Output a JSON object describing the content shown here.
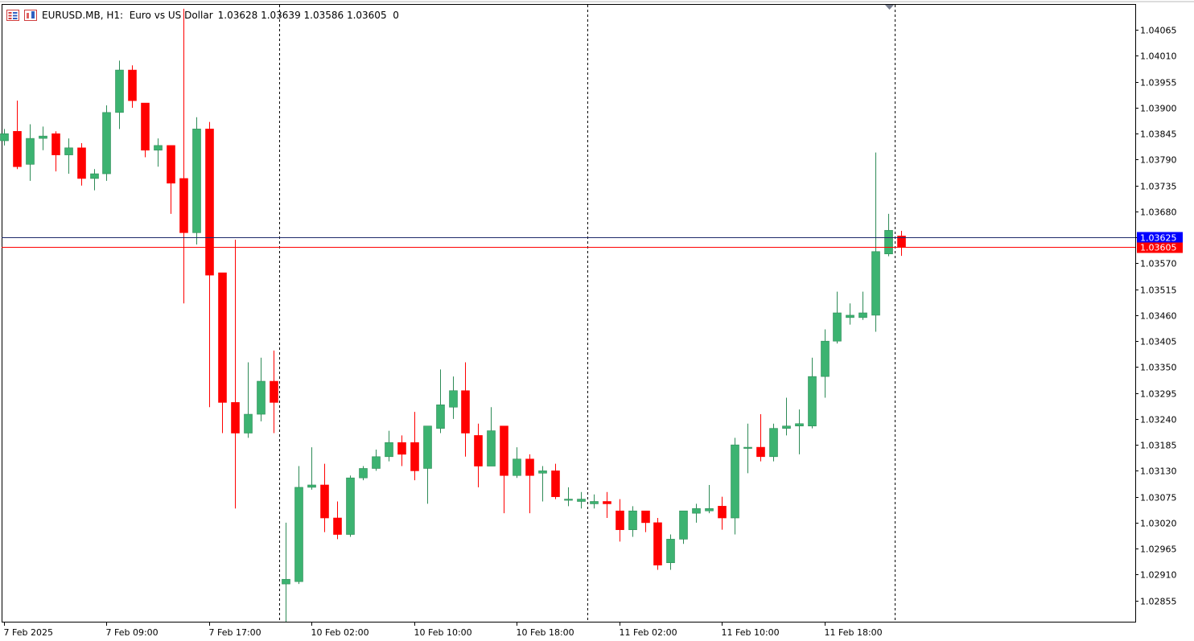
{
  "header": {
    "symbol_line": "EURUSD.MB, H1:  Euro vs US Dollar",
    "ohlc_text": "1.03628 1.03639 1.03586 1.03605  0"
  },
  "colors": {
    "bull": "#3cb371",
    "bull_outline": "#2e8b57",
    "bear": "#ff0000",
    "ask_line": "#0000ff",
    "bid_line": "#ff0000",
    "price_line_alt": "#1f2a6b"
  },
  "icons": [
    "list-icon",
    "chart-icon",
    "scroll-marker-icon"
  ],
  "chart_data": {
    "type": "candlestick",
    "symbol": "EURUSD.MB",
    "timeframe": "H1",
    "description": "Euro vs US Dollar",
    "current": {
      "open": 1.03628,
      "high": 1.03639,
      "low": 1.03586,
      "close": 1.03605
    },
    "bid_label": "1.03605",
    "ask_label": "1.03625",
    "ylim": [
      1.0281,
      1.0412
    ],
    "y_ticks": [
      "1.04065",
      "1.04010",
      "1.03955",
      "1.03900",
      "1.03845",
      "1.03790",
      "1.03735",
      "1.03680",
      "1.03625",
      "1.03570",
      "1.03515",
      "1.03460",
      "1.03405",
      "1.03350",
      "1.03295",
      "1.03240",
      "1.03185",
      "1.03130",
      "1.03075",
      "1.03020",
      "1.02965",
      "1.02910",
      "1.02855"
    ],
    "x_tick_labels": [
      "7 Feb 2025",
      "7 Feb 09:00",
      "7 Feb 17:00",
      "10 Feb 02:00",
      "10 Feb 10:00",
      "10 Feb 18:00",
      "11 Feb 02:00",
      "11 Feb 10:00",
      "11 Feb 18:00"
    ],
    "x_tick_bars": [
      0,
      8,
      16,
      24,
      32,
      40,
      48,
      56,
      64
    ],
    "period_separators": [
      22,
      46,
      70
    ],
    "grid": false,
    "candles": [
      {
        "o": 1.0383,
        "h": 1.03855,
        "l": 1.0382,
        "c": 1.03845
      },
      {
        "o": 1.0385,
        "h": 1.03915,
        "l": 1.0377,
        "c": 1.03775
      },
      {
        "o": 1.0378,
        "h": 1.03865,
        "l": 1.03745,
        "c": 1.03835
      },
      {
        "o": 1.03835,
        "h": 1.0386,
        "l": 1.0381,
        "c": 1.0384
      },
      {
        "o": 1.03845,
        "h": 1.0385,
        "l": 1.03765,
        "c": 1.038
      },
      {
        "o": 1.038,
        "h": 1.03835,
        "l": 1.0376,
        "c": 1.03815
      },
      {
        "o": 1.03815,
        "h": 1.03825,
        "l": 1.03735,
        "c": 1.0375
      },
      {
        "o": 1.0375,
        "h": 1.0377,
        "l": 1.03725,
        "c": 1.0376
      },
      {
        "o": 1.0376,
        "h": 1.03905,
        "l": 1.03745,
        "c": 1.0389
      },
      {
        "o": 1.0389,
        "h": 1.04,
        "l": 1.03855,
        "c": 1.0398
      },
      {
        "o": 1.0398,
        "h": 1.0399,
        "l": 1.039,
        "c": 1.03915
      },
      {
        "o": 1.0391,
        "h": 1.0391,
        "l": 1.03795,
        "c": 1.0381
      },
      {
        "o": 1.0381,
        "h": 1.03835,
        "l": 1.03775,
        "c": 1.0382
      },
      {
        "o": 1.0382,
        "h": 1.0382,
        "l": 1.03675,
        "c": 1.0374
      },
      {
        "o": 1.0375,
        "h": 1.0411,
        "l": 1.03485,
        "c": 1.03635
      },
      {
        "o": 1.03635,
        "h": 1.0388,
        "l": 1.0361,
        "c": 1.03855
      },
      {
        "o": 1.03855,
        "h": 1.0387,
        "l": 1.03265,
        "c": 1.03545
      },
      {
        "o": 1.0355,
        "h": 1.0355,
        "l": 1.0321,
        "c": 1.03275
      },
      {
        "o": 1.03275,
        "h": 1.0362,
        "l": 1.0305,
        "c": 1.0321
      },
      {
        "o": 1.0321,
        "h": 1.0336,
        "l": 1.032,
        "c": 1.0325
      },
      {
        "o": 1.0325,
        "h": 1.0337,
        "l": 1.03235,
        "c": 1.0332
      },
      {
        "o": 1.0332,
        "h": 1.03385,
        "l": 1.0321,
        "c": 1.03275
      },
      {
        "o": 1.0289,
        "h": 1.0302,
        "l": 1.0281,
        "c": 1.029
      },
      {
        "o": 1.02895,
        "h": 1.0314,
        "l": 1.0289,
        "c": 1.03095
      },
      {
        "o": 1.03095,
        "h": 1.0318,
        "l": 1.0309,
        "c": 1.031
      },
      {
        "o": 1.031,
        "h": 1.03145,
        "l": 1.03,
        "c": 1.0303
      },
      {
        "o": 1.0303,
        "h": 1.03065,
        "l": 1.02985,
        "c": 1.02995
      },
      {
        "o": 1.02995,
        "h": 1.0312,
        "l": 1.0299,
        "c": 1.03115
      },
      {
        "o": 1.03115,
        "h": 1.0314,
        "l": 1.0311,
        "c": 1.03135
      },
      {
        "o": 1.03135,
        "h": 1.03175,
        "l": 1.0313,
        "c": 1.0316
      },
      {
        "o": 1.0316,
        "h": 1.03215,
        "l": 1.0315,
        "c": 1.0319
      },
      {
        "o": 1.0319,
        "h": 1.03205,
        "l": 1.0314,
        "c": 1.03165
      },
      {
        "o": 1.0319,
        "h": 1.03255,
        "l": 1.0311,
        "c": 1.0313
      },
      {
        "o": 1.03135,
        "h": 1.03225,
        "l": 1.0306,
        "c": 1.03225
      },
      {
        "o": 1.0322,
        "h": 1.03345,
        "l": 1.0321,
        "c": 1.0327
      },
      {
        "o": 1.03265,
        "h": 1.0333,
        "l": 1.0324,
        "c": 1.033
      },
      {
        "o": 1.033,
        "h": 1.0336,
        "l": 1.0316,
        "c": 1.0321
      },
      {
        "o": 1.03205,
        "h": 1.0323,
        "l": 1.03095,
        "c": 1.0314
      },
      {
        "o": 1.0314,
        "h": 1.03265,
        "l": 1.0314,
        "c": 1.03215
      },
      {
        "o": 1.03225,
        "h": 1.03225,
        "l": 1.0304,
        "c": 1.0312
      },
      {
        "o": 1.0312,
        "h": 1.0318,
        "l": 1.03115,
        "c": 1.03155
      },
      {
        "o": 1.03155,
        "h": 1.03165,
        "l": 1.0304,
        "c": 1.0312
      },
      {
        "o": 1.03125,
        "h": 1.0314,
        "l": 1.03065,
        "c": 1.0313
      },
      {
        "o": 1.0313,
        "h": 1.03145,
        "l": 1.0307,
        "c": 1.03075
      },
      {
        "o": 1.0307,
        "h": 1.03095,
        "l": 1.03055,
        "c": 1.0307
      },
      {
        "o": 1.03065,
        "h": 1.03085,
        "l": 1.0305,
        "c": 1.0307
      },
      {
        "o": 1.0306,
        "h": 1.0308,
        "l": 1.0305,
        "c": 1.03065
      },
      {
        "o": 1.03065,
        "h": 1.03085,
        "l": 1.0303,
        "c": 1.0306
      },
      {
        "o": 1.03045,
        "h": 1.0307,
        "l": 1.0298,
        "c": 1.03005
      },
      {
        "o": 1.03005,
        "h": 1.03055,
        "l": 1.0299,
        "c": 1.03045
      },
      {
        "o": 1.03045,
        "h": 1.03045,
        "l": 1.03,
        "c": 1.0302
      },
      {
        "o": 1.0302,
        "h": 1.0303,
        "l": 1.0292,
        "c": 1.0293
      },
      {
        "o": 1.02935,
        "h": 1.02995,
        "l": 1.0292,
        "c": 1.02985
      },
      {
        "o": 1.02985,
        "h": 1.03045,
        "l": 1.02975,
        "c": 1.03045
      },
      {
        "o": 1.0304,
        "h": 1.0306,
        "l": 1.0302,
        "c": 1.0305
      },
      {
        "o": 1.03045,
        "h": 1.031,
        "l": 1.0304,
        "c": 1.0305
      },
      {
        "o": 1.03055,
        "h": 1.03075,
        "l": 1.03005,
        "c": 1.0303
      },
      {
        "o": 1.0303,
        "h": 1.032,
        "l": 1.02995,
        "c": 1.03185
      },
      {
        "o": 1.0318,
        "h": 1.0323,
        "l": 1.03125,
        "c": 1.0318
      },
      {
        "o": 1.0318,
        "h": 1.0325,
        "l": 1.0315,
        "c": 1.0316
      },
      {
        "o": 1.0316,
        "h": 1.0323,
        "l": 1.0315,
        "c": 1.0322
      },
      {
        "o": 1.0322,
        "h": 1.03285,
        "l": 1.03205,
        "c": 1.03225
      },
      {
        "o": 1.03225,
        "h": 1.0326,
        "l": 1.03165,
        "c": 1.0323
      },
      {
        "o": 1.03225,
        "h": 1.0337,
        "l": 1.0322,
        "c": 1.0333
      },
      {
        "o": 1.0333,
        "h": 1.0343,
        "l": 1.03285,
        "c": 1.03405
      },
      {
        "o": 1.03405,
        "h": 1.0351,
        "l": 1.034,
        "c": 1.03465
      },
      {
        "o": 1.03455,
        "h": 1.03485,
        "l": 1.0344,
        "c": 1.0346
      },
      {
        "o": 1.03455,
        "h": 1.0351,
        "l": 1.0345,
        "c": 1.03465
      },
      {
        "o": 1.0346,
        "h": 1.03805,
        "l": 1.03425,
        "c": 1.03595
      },
      {
        "o": 1.0359,
        "h": 1.03675,
        "l": 1.03585,
        "c": 1.0364
      },
      {
        "o": 1.03628,
        "h": 1.03639,
        "l": 1.03586,
        "c": 1.03605
      }
    ]
  }
}
